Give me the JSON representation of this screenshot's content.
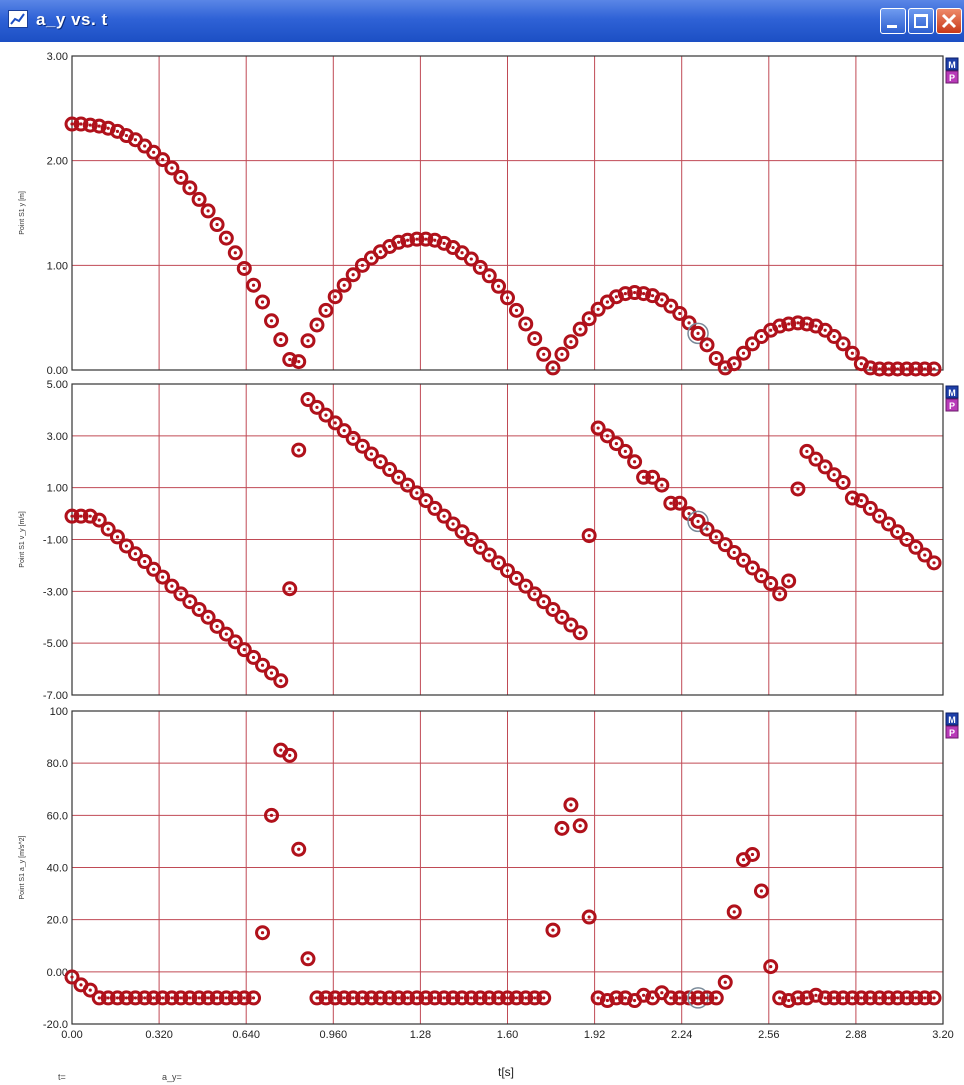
{
  "window": {
    "title": "a_y vs. t",
    "title_color": "#2f62d6"
  },
  "colors": {
    "grid": "#c04a55",
    "marker": "#b0111b",
    "marker_center": "#ffffff",
    "selected_ring": "#7a8a99"
  },
  "icons": {
    "window": "graph-window-icon",
    "minimize": "minimize-icon",
    "maximize": "maximize-icon",
    "close": "close-icon"
  },
  "panel_buttons": {
    "m_label": "M",
    "p_label": "P"
  },
  "status_bar": {
    "t_label": "t=",
    "ay_label": "a_y="
  },
  "chart_data": [
    {
      "type": "scatter",
      "title": "",
      "xlabel": "",
      "ylabel": "Point S1 y [m]",
      "xlim": [
        0,
        3.2
      ],
      "ylim": [
        0,
        3
      ],
      "yticks": [
        0,
        1,
        2,
        3
      ],
      "ytick_labels": [
        "0.00",
        "1.00",
        "2.00",
        "3.00"
      ],
      "xticks": [
        0,
        0.32,
        0.64,
        0.96,
        1.28,
        1.6,
        1.92,
        2.24,
        2.56,
        2.88,
        3.2
      ],
      "grid": true,
      "selected_index": 69,
      "series": [
        {
          "x": [
            0.0,
            0.033,
            0.067,
            0.1,
            0.133,
            0.167,
            0.2,
            0.233,
            0.267,
            0.3,
            0.333,
            0.367,
            0.4,
            0.433,
            0.467,
            0.5,
            0.533,
            0.567,
            0.6,
            0.633,
            0.667,
            0.7,
            0.733,
            0.767,
            0.8,
            0.833,
            0.867,
            0.9,
            0.933,
            0.967,
            1.0,
            1.033,
            1.067,
            1.1,
            1.133,
            1.167,
            1.2,
            1.233,
            1.267,
            1.3,
            1.333,
            1.367,
            1.4,
            1.433,
            1.467,
            1.5,
            1.533,
            1.567,
            1.6,
            1.633,
            1.667,
            1.7,
            1.733,
            1.767,
            1.8,
            1.833,
            1.867,
            1.9,
            1.933,
            1.967,
            2.0,
            2.033,
            2.067,
            2.1,
            2.133,
            2.167,
            2.2,
            2.233,
            2.267,
            2.3,
            2.333,
            2.367,
            2.4,
            2.433,
            2.467,
            2.5,
            2.533,
            2.567,
            2.6,
            2.633,
            2.667,
            2.7,
            2.733,
            2.767,
            2.8,
            2.833,
            2.867,
            2.9,
            2.933,
            2.967,
            3.0,
            3.033,
            3.067,
            3.1,
            3.133,
            3.167
          ],
          "y": [
            2.35,
            2.35,
            2.34,
            2.33,
            2.31,
            2.28,
            2.24,
            2.2,
            2.14,
            2.08,
            2.01,
            1.93,
            1.84,
            1.74,
            1.63,
            1.52,
            1.39,
            1.26,
            1.12,
            0.97,
            0.81,
            0.65,
            0.47,
            0.29,
            0.1,
            0.08,
            0.28,
            0.43,
            0.57,
            0.7,
            0.81,
            0.91,
            1.0,
            1.07,
            1.13,
            1.18,
            1.22,
            1.24,
            1.25,
            1.25,
            1.24,
            1.21,
            1.17,
            1.12,
            1.06,
            0.98,
            0.9,
            0.8,
            0.69,
            0.57,
            0.44,
            0.3,
            0.15,
            0.02,
            0.15,
            0.27,
            0.39,
            0.49,
            0.58,
            0.65,
            0.7,
            0.73,
            0.74,
            0.73,
            0.71,
            0.67,
            0.61,
            0.54,
            0.45,
            0.35,
            0.24,
            0.11,
            0.02,
            0.06,
            0.16,
            0.25,
            0.32,
            0.38,
            0.42,
            0.44,
            0.45,
            0.44,
            0.42,
            0.38,
            0.32,
            0.25,
            0.16,
            0.06,
            0.02,
            0.01,
            0.01,
            0.01,
            0.01,
            0.01,
            0.01,
            0.01
          ]
        }
      ]
    },
    {
      "type": "scatter",
      "title": "",
      "xlabel": "",
      "ylabel": "Point S1 v_y [m/s]",
      "xlim": [
        0,
        3.2
      ],
      "ylim": [
        -7,
        5
      ],
      "yticks": [
        -7,
        -5,
        -3,
        -1,
        1,
        3,
        5
      ],
      "ytick_labels": [
        "-7.00",
        "-5.00",
        "-3.00",
        "-1.00",
        "1.00",
        "3.00",
        "5.00"
      ],
      "xticks": [
        0,
        0.32,
        0.64,
        0.96,
        1.28,
        1.6,
        1.92,
        2.24,
        2.56,
        2.88,
        3.2
      ],
      "grid": true,
      "selected_index": 69,
      "series": [
        {
          "x": [
            0.0,
            0.033,
            0.067,
            0.1,
            0.133,
            0.167,
            0.2,
            0.233,
            0.267,
            0.3,
            0.333,
            0.367,
            0.4,
            0.433,
            0.467,
            0.5,
            0.533,
            0.567,
            0.6,
            0.633,
            0.667,
            0.7,
            0.733,
            0.767,
            0.8,
            0.833,
            0.867,
            0.9,
            0.933,
            0.967,
            1.0,
            1.033,
            1.067,
            1.1,
            1.133,
            1.167,
            1.2,
            1.233,
            1.267,
            1.3,
            1.333,
            1.367,
            1.4,
            1.433,
            1.467,
            1.5,
            1.533,
            1.567,
            1.6,
            1.633,
            1.667,
            1.7,
            1.733,
            1.767,
            1.8,
            1.833,
            1.867,
            1.9,
            1.933,
            1.967,
            2.0,
            2.033,
            2.067,
            2.1,
            2.133,
            2.167,
            2.2,
            2.233,
            2.267,
            2.3,
            2.333,
            2.367,
            2.4,
            2.433,
            2.467,
            2.5,
            2.533,
            2.567,
            2.6,
            2.633,
            2.667,
            2.7,
            2.733,
            2.767,
            2.8,
            2.833,
            2.867,
            2.9,
            2.933,
            2.967,
            3.0,
            3.033,
            3.067,
            3.1,
            3.133,
            3.167
          ],
          "y": [
            -0.1,
            -0.1,
            -0.1,
            -0.25,
            -0.6,
            -0.9,
            -1.25,
            -1.55,
            -1.85,
            -2.15,
            -2.45,
            -2.8,
            -3.1,
            -3.4,
            -3.7,
            -4.0,
            -4.35,
            -4.65,
            -4.95,
            -5.25,
            -5.55,
            -5.85,
            -6.15,
            -6.45,
            -2.9,
            2.45,
            4.4,
            4.1,
            3.8,
            3.5,
            3.2,
            2.9,
            2.6,
            2.3,
            2.0,
            1.7,
            1.4,
            1.1,
            0.8,
            0.5,
            0.2,
            -0.1,
            -0.4,
            -0.7,
            -1.0,
            -1.3,
            -1.6,
            -1.9,
            -2.2,
            -2.5,
            -2.8,
            -3.1,
            -3.4,
            -3.7,
            -4.0,
            -4.3,
            -4.6,
            -0.85,
            3.3,
            3.0,
            2.7,
            2.4,
            2.0,
            1.4,
            1.4,
            1.1,
            0.4,
            0.4,
            0.0,
            -0.3,
            -0.6,
            -0.9,
            -1.2,
            -1.5,
            -1.8,
            -2.1,
            -2.4,
            -2.7,
            -3.1,
            -2.6,
            0.95,
            2.4,
            2.1,
            1.8,
            1.5,
            1.2,
            0.6,
            0.5,
            0.2,
            -0.1,
            -0.4,
            -0.7,
            -1.0,
            -1.3,
            -1.6,
            -1.9
          ]
        }
      ]
    },
    {
      "type": "scatter",
      "title": "",
      "xlabel": "t[s]",
      "ylabel": "Point S1 a_y [m/s^2]",
      "xlim": [
        0,
        3.2
      ],
      "ylim": [
        -20,
        100
      ],
      "yticks": [
        -20,
        0,
        20,
        40,
        60,
        80,
        100
      ],
      "ytick_labels": [
        "-20.0",
        "0.00",
        "20.0",
        "40.0",
        "60.0",
        "80.0",
        "100"
      ],
      "xticks": [
        0,
        0.32,
        0.64,
        0.96,
        1.28,
        1.6,
        1.92,
        2.24,
        2.56,
        2.88,
        3.2
      ],
      "xtick_labels": [
        "0.00",
        "0.320",
        "0.640",
        "0.960",
        "1.28",
        "1.60",
        "1.92",
        "2.24",
        "2.56",
        "2.88",
        "3.20"
      ],
      "grid": true,
      "selected_index": 69,
      "series": [
        {
          "x": [
            0.0,
            0.033,
            0.067,
            0.1,
            0.133,
            0.167,
            0.2,
            0.233,
            0.267,
            0.3,
            0.333,
            0.367,
            0.4,
            0.433,
            0.467,
            0.5,
            0.533,
            0.567,
            0.6,
            0.633,
            0.667,
            0.7,
            0.733,
            0.767,
            0.8,
            0.833,
            0.867,
            0.9,
            0.933,
            0.967,
            1.0,
            1.033,
            1.067,
            1.1,
            1.133,
            1.167,
            1.2,
            1.233,
            1.267,
            1.3,
            1.333,
            1.367,
            1.4,
            1.433,
            1.467,
            1.5,
            1.533,
            1.567,
            1.6,
            1.633,
            1.667,
            1.7,
            1.733,
            1.767,
            1.8,
            1.833,
            1.867,
            1.9,
            1.933,
            1.967,
            2.0,
            2.033,
            2.067,
            2.1,
            2.133,
            2.167,
            2.2,
            2.233,
            2.267,
            2.3,
            2.333,
            2.367,
            2.4,
            2.433,
            2.467,
            2.5,
            2.533,
            2.567,
            2.6,
            2.633,
            2.667,
            2.7,
            2.733,
            2.767,
            2.8,
            2.833,
            2.867,
            2.9,
            2.933,
            2.967,
            3.0,
            3.033,
            3.067,
            3.1,
            3.133,
            3.167
          ],
          "y": [
            -2,
            -5,
            -7,
            -10,
            -10,
            -10,
            -10,
            -10,
            -10,
            -10,
            -10,
            -10,
            -10,
            -10,
            -10,
            -10,
            -10,
            -10,
            -10,
            -10,
            -10,
            15,
            60,
            85,
            83,
            47,
            5,
            -10,
            -10,
            -10,
            -10,
            -10,
            -10,
            -10,
            -10,
            -10,
            -10,
            -10,
            -10,
            -10,
            -10,
            -10,
            -10,
            -10,
            -10,
            -10,
            -10,
            -10,
            -10,
            -10,
            -10,
            -10,
            -10,
            16,
            55,
            64,
            56,
            21,
            -10,
            -11,
            -10,
            -10,
            -11,
            -9,
            -10,
            -8,
            -10,
            -10,
            -10,
            -10,
            -10,
            -10,
            -4,
            23,
            43,
            45,
            31,
            2,
            -10,
            -11,
            -10,
            -10,
            -9,
            -10,
            -10,
            -10,
            -10,
            -10,
            -10,
            -10,
            -10,
            -10,
            -10,
            -10,
            -10,
            -10
          ]
        }
      ]
    }
  ]
}
